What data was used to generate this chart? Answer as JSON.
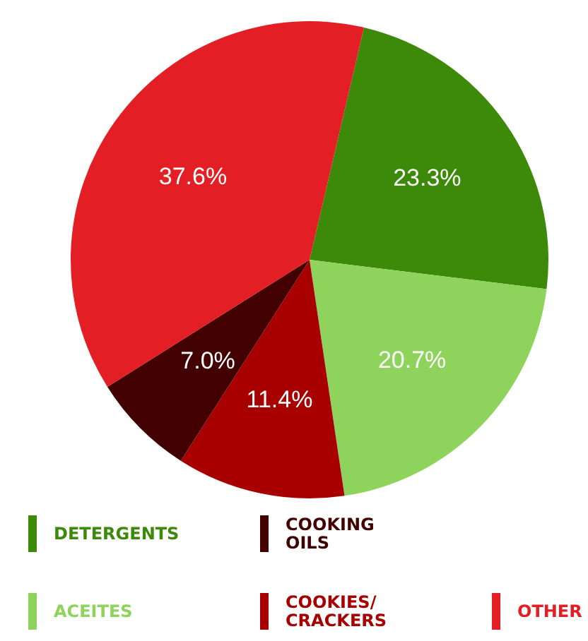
{
  "chart_data": {
    "type": "pie",
    "categories": [
      "DETERGENTS",
      "ACEITES",
      "COOKIES/CRACKERS",
      "COOKING OILS",
      "OTHER"
    ],
    "values": [
      23.3,
      20.7,
      11.4,
      7.0,
      37.6
    ],
    "value_labels": [
      "23.3%",
      "20.7%",
      "11.4%",
      "7.0%",
      "37.6%"
    ],
    "colors": [
      "#3d8a0a",
      "#8ed35c",
      "#a80000",
      "#420000",
      "#e31e24"
    ],
    "legend": "bottom"
  }
}
